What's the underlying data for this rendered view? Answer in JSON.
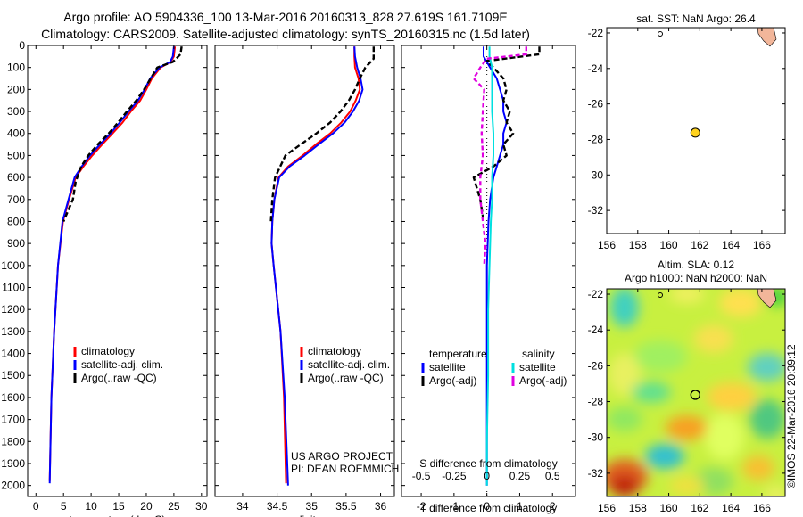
{
  "header": {
    "title_line1": "Argo profile: AO 5904336_100 13-Mar-2016 20160313_828 27.619S 161.7109E",
    "title_line2": "Climatology: CARS2009. Satellite-adjusted climatology: synTS_20160315.nc (1.5d later)"
  },
  "colors": {
    "climatology": "#ff0000",
    "satellite": "#0000ff",
    "argo": "#000000",
    "salinity_sat": "#00e0e0",
    "salinity_argo": "#e000e0",
    "land": "#f2b69a",
    "float_marker": "#ffd21e"
  },
  "chart_data": [
    {
      "id": "temperature",
      "type": "line",
      "xlabel": "temperature (deg C)",
      "ylabel": "",
      "xlim": [
        -1.5,
        31
      ],
      "ylim": [
        2050,
        0
      ],
      "xticks": [
        0,
        5,
        10,
        15,
        20,
        25,
        30
      ],
      "yticks": [
        0,
        100,
        200,
        300,
        400,
        500,
        600,
        700,
        800,
        900,
        1000,
        1100,
        1200,
        1300,
        1400,
        1500,
        1600,
        1700,
        1800,
        1900,
        2000
      ],
      "legend": [
        "climatology",
        "satellite-adj. clim.",
        "Argo(..raw -QC)"
      ],
      "series": [
        {
          "name": "climatology",
          "x": [
            25.2,
            25.0,
            24.4,
            22.6,
            21.0,
            20.0,
            18.9,
            17.2,
            15.7,
            13.9,
            12.0,
            10.2,
            8.6,
            7.2,
            6.0,
            4.9,
            4.0,
            3.3,
            2.8,
            2.5
          ],
          "y": [
            5,
            50,
            75,
            100,
            150,
            200,
            250,
            300,
            350,
            400,
            450,
            500,
            550,
            600,
            700,
            800,
            1000,
            1300,
            1600,
            1980
          ]
        },
        {
          "name": "satellite-adj. clim.",
          "x": [
            25.0,
            24.8,
            24.3,
            22.4,
            20.7,
            19.7,
            18.5,
            16.8,
            15.2,
            13.5,
            11.6,
            9.8,
            8.3,
            7.0,
            5.9,
            4.8,
            4.0,
            3.3,
            2.8,
            2.5
          ],
          "y": [
            5,
            50,
            75,
            100,
            150,
            200,
            250,
            300,
            350,
            400,
            450,
            500,
            550,
            600,
            700,
            800,
            1000,
            1300,
            1600,
            1990
          ]
        },
        {
          "name": "Argo(..raw -QC)",
          "x": [
            26.4,
            26.2,
            24.8,
            22.0,
            20.8,
            19.6,
            18.2,
            16.5,
            14.9,
            13.2,
            11.2,
            9.5,
            8.2,
            7.2,
            6.7,
            5.0
          ],
          "y": [
            5,
            40,
            75,
            100,
            150,
            200,
            250,
            300,
            350,
            400,
            450,
            500,
            550,
            620,
            700,
            800
          ]
        }
      ]
    },
    {
      "id": "salinity",
      "type": "line",
      "xlabel": "salinity",
      "xlim": [
        33.6,
        36.2
      ],
      "ylim": [
        2050,
        0
      ],
      "xticks": [
        34,
        34.5,
        35,
        35.5,
        36
      ],
      "xticklabels": [
        "34",
        "34.5",
        "35",
        "35.5",
        "36"
      ],
      "legend": [
        "climatology",
        "satellite-adj. clim.",
        "Argo(..raw -QC)"
      ],
      "annotation": [
        "US ARGO PROJECT",
        "PI: DEAN ROEMMICH"
      ],
      "series": [
        {
          "name": "climatology",
          "x": [
            35.62,
            35.62,
            35.63,
            35.68,
            35.7,
            35.64,
            35.56,
            35.43,
            35.27,
            35.06,
            34.87,
            34.66,
            34.52,
            34.46,
            34.43,
            34.42,
            34.45,
            34.55,
            34.6,
            34.63
          ],
          "y": [
            5,
            50,
            100,
            150,
            200,
            250,
            300,
            350,
            400,
            450,
            500,
            550,
            600,
            700,
            800,
            900,
            1000,
            1300,
            1600,
            1990
          ]
        },
        {
          "name": "satellite-adj. clim.",
          "x": [
            35.62,
            35.63,
            35.66,
            35.71,
            35.74,
            35.69,
            35.6,
            35.48,
            35.31,
            35.1,
            34.9,
            34.68,
            34.53,
            34.46,
            34.43,
            34.42,
            34.45,
            34.55,
            34.61,
            34.66
          ],
          "y": [
            5,
            50,
            100,
            150,
            200,
            250,
            300,
            350,
            400,
            450,
            500,
            550,
            600,
            700,
            800,
            900,
            1000,
            1300,
            1600,
            2000
          ]
        },
        {
          "name": "Argo(..raw -QC)",
          "x": [
            35.9,
            35.9,
            35.78,
            35.7,
            35.63,
            35.54,
            35.42,
            35.27,
            35.07,
            34.84,
            34.62,
            34.47,
            34.43,
            34.41
          ],
          "y": [
            5,
            60,
            100,
            150,
            200,
            250,
            300,
            350,
            400,
            450,
            500,
            600,
            700,
            800
          ]
        }
      ]
    },
    {
      "id": "difference",
      "type": "line",
      "xlabel": "T difference from climatology",
      "xlabel_top": "S difference from climatology",
      "xlim": [
        -2.6,
        2.7
      ],
      "ylim": [
        2050,
        0
      ],
      "xticks": [
        -2,
        -1,
        0,
        1,
        2
      ],
      "s_ticks": [
        -0.5,
        -0.25,
        0,
        0.25,
        0.5
      ],
      "s_ticklabels": [
        "-0.5",
        "-0.25",
        "0",
        "0.25",
        "0.5"
      ],
      "legend_temperature": {
        "title": "temperature",
        "items": [
          "satellite",
          "Argo(-adj)"
        ]
      },
      "legend_salinity": {
        "title": "salinity",
        "items": [
          "satellite",
          "Argo(-adj)"
        ]
      },
      "series": [
        {
          "name": "T satellite",
          "x": [
            -0.1,
            -0.1,
            0.1,
            0.3,
            0.4,
            0.5,
            0.5,
            0.6,
            0.5,
            0.5,
            0.4,
            0.3,
            0.2,
            0.1,
            0.05,
            0,
            0,
            0
          ],
          "y": [
            5,
            50,
            100,
            150,
            200,
            250,
            300,
            350,
            400,
            450,
            500,
            550,
            600,
            700,
            800,
            1000,
            1500,
            2000
          ]
        },
        {
          "name": "T Argo(-adj)",
          "x": [
            1.6,
            1.6,
            0.0,
            0.2,
            0.5,
            0.6,
            0.5,
            0.7,
            0.6,
            0.8,
            0.5,
            0.6,
            0.2,
            -0.4,
            -0.2,
            -0.1
          ],
          "y": [
            5,
            40,
            70,
            100,
            150,
            200,
            250,
            300,
            350,
            400,
            450,
            500,
            550,
            600,
            700,
            800
          ]
        },
        {
          "name": "S satellite",
          "x": [
            0.02,
            0.02,
            0.04,
            0.04,
            0.04,
            0.04,
            0.05,
            0.05,
            0.04,
            0.04,
            0.03,
            0.02,
            0.01,
            0.01,
            0.0,
            0.0
          ],
          "y": [
            5,
            50,
            100,
            150,
            200,
            300,
            400,
            500,
            600,
            700,
            800,
            1000,
            1200,
            1500,
            1800,
            2000
          ]
        },
        {
          "name": "S Argo(-adj)",
          "x": [
            0.3,
            0.3,
            0.0,
            -0.05,
            -0.1,
            -0.02,
            -0.03,
            -0.04,
            -0.03,
            -0.05,
            -0.05,
            -0.03,
            -0.01,
            -0.02
          ],
          "y": [
            5,
            40,
            60,
            100,
            150,
            200,
            300,
            400,
            500,
            600,
            700,
            800,
            900,
            1000
          ]
        }
      ]
    },
    {
      "id": "sst_map",
      "type": "scatter",
      "title": "sat. SST: NaN Argo: 26.4",
      "xlim": [
        156,
        167.5
      ],
      "ylim": [
        -33.3,
        -21.7
      ],
      "xticks": [
        156,
        158,
        160,
        162,
        164,
        166
      ],
      "yticks": [
        -22,
        -24,
        -26,
        -28,
        -30,
        -32
      ],
      "float_position": {
        "lon": 161.71,
        "lat": -27.62
      }
    },
    {
      "id": "sla_map",
      "type": "heatmap",
      "title": "Altim. SLA: 0.12",
      "subtitle": "Argo h1000: NaN h2000: NaN",
      "xlim": [
        156,
        167.5
      ],
      "ylim": [
        -33.3,
        -21.7
      ],
      "xticks": [
        156,
        158,
        160,
        162,
        164,
        166
      ],
      "yticks": [
        -22,
        -24,
        -26,
        -28,
        -30,
        -32
      ],
      "float_position": {
        "lon": 161.71,
        "lat": -27.62
      }
    }
  ],
  "footer": {
    "credit": "©IMOS 22-Mar-2016 20:39:12"
  }
}
